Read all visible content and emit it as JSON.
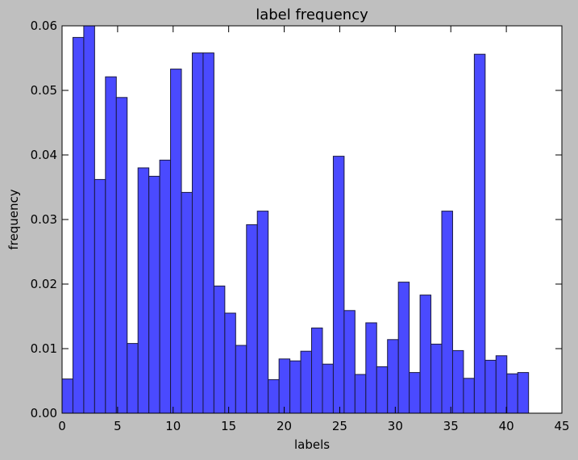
{
  "chart_data": {
    "type": "histogram",
    "title": "label frequency",
    "xlabel": "labels",
    "ylabel": "frequency",
    "color": "#4040ff",
    "bins": [
      0,
      0.977,
      1.953,
      2.93,
      3.907,
      4.884,
      5.86,
      6.837,
      7.814,
      8.791,
      9.767,
      10.744,
      11.721,
      12.698,
      13.674,
      14.651,
      15.628,
      16.605,
      17.581,
      18.558,
      19.535,
      20.512,
      21.488,
      22.465,
      23.442,
      24.419,
      25.395,
      26.372,
      27.349,
      28.326,
      29.302,
      30.279,
      31.256,
      32.233,
      33.209,
      34.186,
      35.163,
      36.14,
      37.116,
      38.093,
      39.07,
      40.047,
      41.023,
      42
    ],
    "values": [
      0.0053,
      0.0582,
      0.06,
      0.0362,
      0.0521,
      0.0489,
      0.0108,
      0.038,
      0.0367,
      0.0392,
      0.0533,
      0.0342,
      0.0558,
      0.0558,
      0.0197,
      0.0155,
      0.0105,
      0.0292,
      0.0313,
      0.0052,
      0.0084,
      0.0081,
      0.0096,
      0.0132,
      0.0076,
      0.0398,
      0.0159,
      0.006,
      0.014,
      0.0072,
      0.0114,
      0.0203,
      0.0063,
      0.0183,
      0.0107,
      0.0313,
      0.0097,
      0.0054,
      0.0556,
      0.0082,
      0.0089,
      0.0061,
      0.0063
    ],
    "xlim": [
      0,
      45
    ],
    "xticks": [
      0,
      5,
      10,
      15,
      20,
      25,
      30,
      35,
      40,
      45
    ],
    "ylim": [
      0,
      0.06
    ],
    "yticks": [
      {
        "value": 0,
        "label": "0.00"
      },
      {
        "value": 0.01,
        "label": "0.01"
      },
      {
        "value": 0.02,
        "label": "0.02"
      },
      {
        "value": 0.03,
        "label": "0.03"
      },
      {
        "value": 0.04,
        "label": "0.04"
      },
      {
        "value": 0.05,
        "label": "0.05"
      },
      {
        "value": 0.06,
        "label": "0.06"
      }
    ]
  }
}
